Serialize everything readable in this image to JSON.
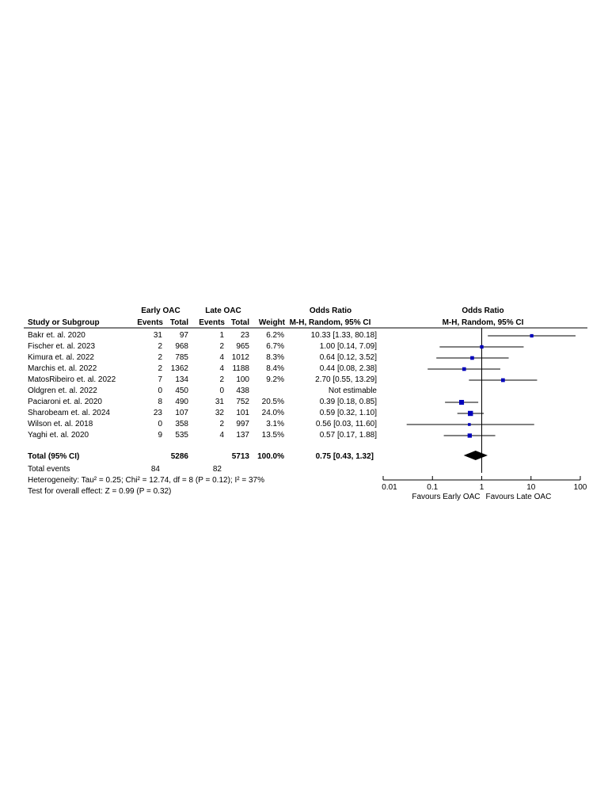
{
  "chart_data": {
    "type": "forest",
    "title": "Odds Ratio",
    "columns": {
      "group_early": "Early OAC",
      "group_late": "Late OAC",
      "study": "Study or Subgroup",
      "events": "Events",
      "total": "Total",
      "weight": "Weight",
      "or_header": "Odds Ratio",
      "or_method": "M-H, Random, 95% CI",
      "plot_header": "Odds Ratio",
      "plot_method": "M-H, Random, 95% CI"
    },
    "studies": [
      {
        "name": "Bakr et. al. 2020",
        "e_events": "31",
        "e_total": "97",
        "l_events": "1",
        "l_total": "23",
        "weight": "6.2%",
        "or_text": "10.33 [1.33, 80.18]",
        "or": 10.33,
        "lo": 1.33,
        "hi": 80.18,
        "w": 6.2
      },
      {
        "name": "Fischer et. al. 2023",
        "e_events": "2",
        "e_total": "968",
        "l_events": "2",
        "l_total": "965",
        "weight": "6.7%",
        "or_text": "1.00 [0.14, 7.09]",
        "or": 1.0,
        "lo": 0.14,
        "hi": 7.09,
        "w": 6.7
      },
      {
        "name": "Kimura et. al. 2022",
        "e_events": "2",
        "e_total": "785",
        "l_events": "4",
        "l_total": "1012",
        "weight": "8.3%",
        "or_text": "0.64 [0.12, 3.52]",
        "or": 0.64,
        "lo": 0.12,
        "hi": 3.52,
        "w": 8.3
      },
      {
        "name": "Marchis et. al. 2022",
        "e_events": "2",
        "e_total": "1362",
        "l_events": "4",
        "l_total": "1188",
        "weight": "8.4%",
        "or_text": "0.44 [0.08, 2.38]",
        "or": 0.44,
        "lo": 0.08,
        "hi": 2.38,
        "w": 8.4
      },
      {
        "name": "MatosRibeiro et. al. 2022",
        "e_events": "7",
        "e_total": "134",
        "l_events": "2",
        "l_total": "100",
        "weight": "9.2%",
        "or_text": "2.70 [0.55, 13.29]",
        "or": 2.7,
        "lo": 0.55,
        "hi": 13.29,
        "w": 9.2
      },
      {
        "name": "Oldgren et. al. 2022",
        "e_events": "0",
        "e_total": "450",
        "l_events": "0",
        "l_total": "438",
        "weight": "",
        "or_text": "Not estimable",
        "or": null,
        "lo": null,
        "hi": null,
        "w": 0
      },
      {
        "name": "Paciaroni et. al. 2020",
        "e_events": "8",
        "e_total": "490",
        "l_events": "31",
        "l_total": "752",
        "weight": "20.5%",
        "or_text": "0.39 [0.18, 0.85]",
        "or": 0.39,
        "lo": 0.18,
        "hi": 0.85,
        "w": 20.5
      },
      {
        "name": "Sharobeam et. al. 2024",
        "e_events": "23",
        "e_total": "107",
        "l_events": "32",
        "l_total": "101",
        "weight": "24.0%",
        "or_text": "0.59 [0.32, 1.10]",
        "or": 0.59,
        "lo": 0.32,
        "hi": 1.1,
        "w": 24.0
      },
      {
        "name": "Wilson et. al. 2018",
        "e_events": "0",
        "e_total": "358",
        "l_events": "2",
        "l_total": "997",
        "weight": "3.1%",
        "or_text": "0.56 [0.03, 11.60]",
        "or": 0.56,
        "lo": 0.03,
        "hi": 11.6,
        "w": 3.1
      },
      {
        "name": "Yaghi et. al. 2020",
        "e_events": "9",
        "e_total": "535",
        "l_events": "4",
        "l_total": "137",
        "weight": "13.5%",
        "or_text": "0.57 [0.17, 1.88]",
        "or": 0.57,
        "lo": 0.17,
        "hi": 1.88,
        "w": 13.5
      }
    ],
    "total": {
      "label": "Total (95% CI)",
      "e_total": "5286",
      "l_total": "5713",
      "weight": "100.0%",
      "or_text": "0.75 [0.43, 1.32]",
      "or": 0.75,
      "lo": 0.43,
      "hi": 1.32
    },
    "total_events": {
      "label": "Total events",
      "early": "84",
      "late": "82"
    },
    "heterogeneity": "Heterogeneity: Tau² = 0.25; Chi² = 12.74, df = 8 (P = 0.12); I² = 37%",
    "overall_effect": "Test for overall effect: Z = 0.99 (P = 0.32)",
    "x_axis": {
      "scale": "log",
      "range": [
        0.01,
        100
      ],
      "ticks": [
        {
          "value": 0.01,
          "label": "0.01"
        },
        {
          "value": 0.1,
          "label": "0.1"
        },
        {
          "value": 1,
          "label": "1"
        },
        {
          "value": 10,
          "label": "10"
        },
        {
          "value": 100,
          "label": "100"
        }
      ]
    },
    "favours_left": "Favours Early OAC",
    "favours_right": "Favours Late OAC",
    "colors": {
      "square": "#0000bb",
      "diamond": "#000000",
      "line": "#000000"
    }
  }
}
